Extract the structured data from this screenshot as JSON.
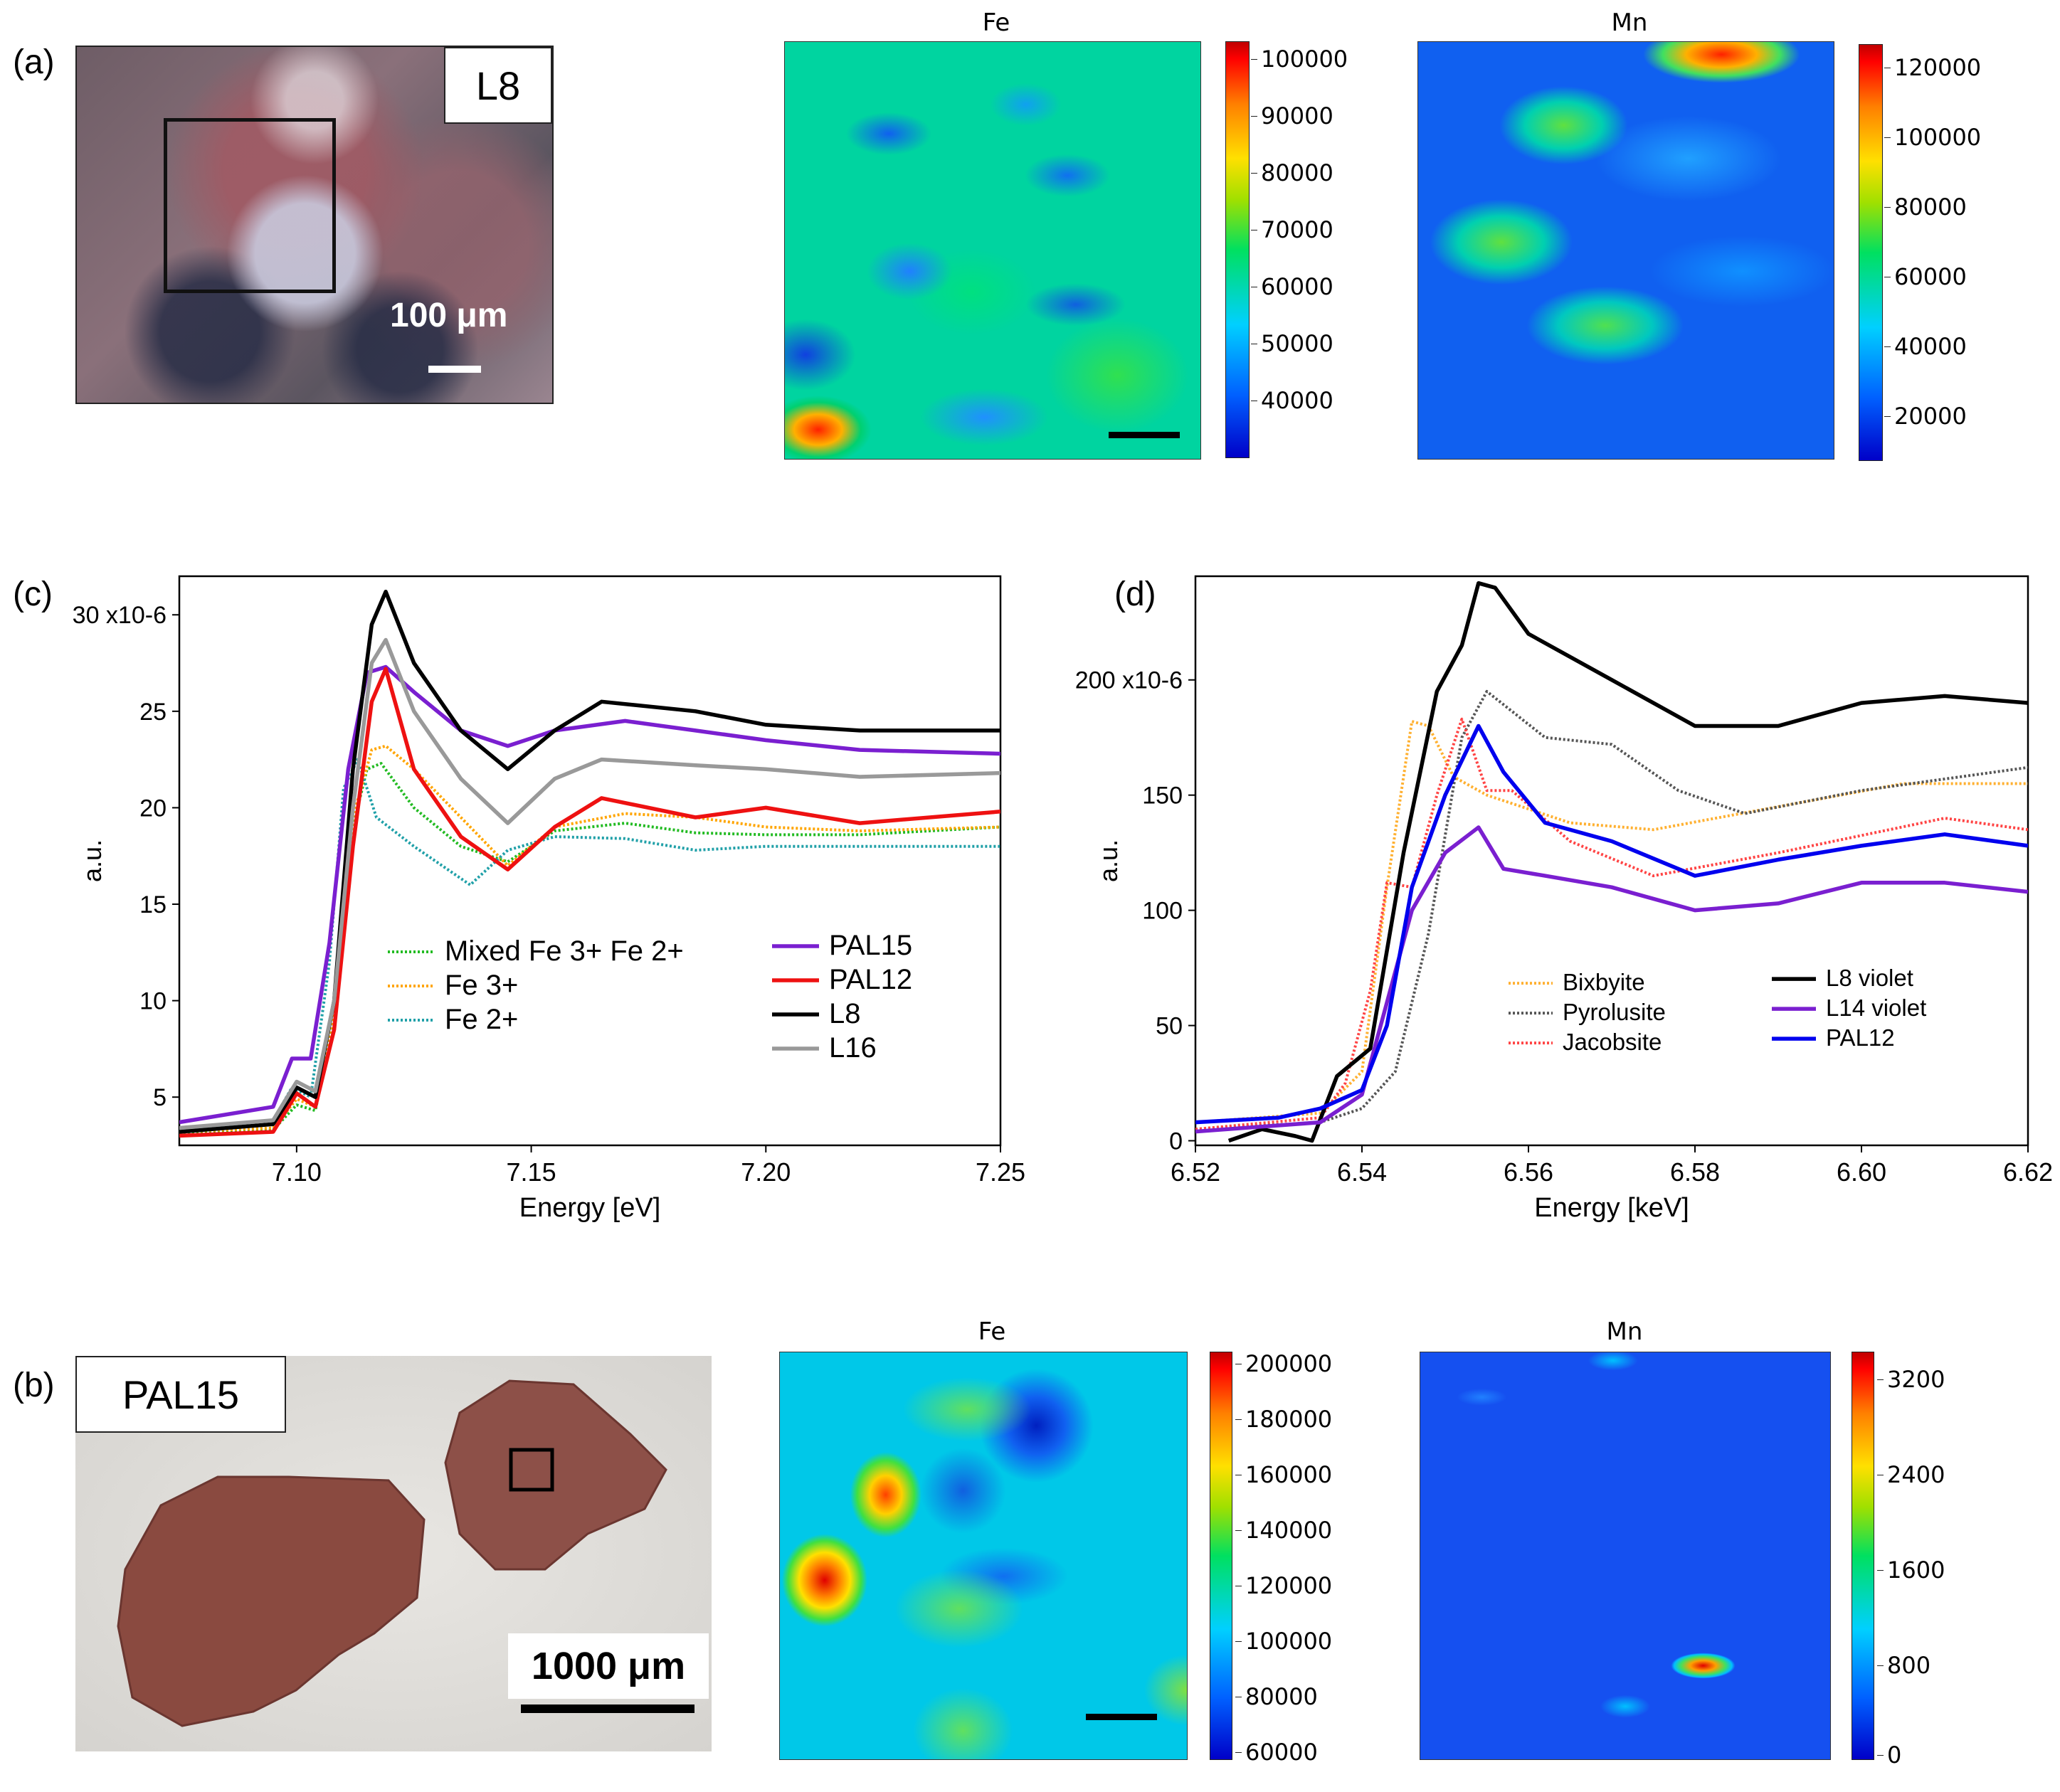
{
  "panels": {
    "a": {
      "label": "(a)",
      "photo_tag": "L8",
      "scale_text": "100 μm",
      "fe_map": {
        "title": "Fe",
        "colorbar_ticks": [
          "100000",
          "90000",
          "80000",
          "70000",
          "60000",
          "50000",
          "40000"
        ]
      },
      "mn_map": {
        "title": "Mn",
        "colorbar_ticks": [
          "120000",
          "100000",
          "80000",
          "60000",
          "40000",
          "20000"
        ]
      }
    },
    "b": {
      "label": "(b)",
      "photo_tag": "PAL15",
      "scale_text": "1000 μm",
      "fe_map": {
        "title": "Fe",
        "colorbar_ticks": [
          "200000",
          "180000",
          "160000",
          "140000",
          "120000",
          "100000",
          "80000",
          "60000"
        ]
      },
      "mn_map": {
        "title": "Mn",
        "colorbar_ticks": [
          "3200",
          "2400",
          "1600",
          "800",
          "0"
        ]
      }
    },
    "c": {
      "label": "(c)"
    },
    "d": {
      "label": "(d)"
    }
  },
  "chart_data": [
    {
      "type": "line",
      "panel": "(c)",
      "xlabel": "Energy [eV]",
      "ylabel": "a.u.",
      "xlim": [
        7.075,
        7.25
      ],
      "ylim": [
        2.5,
        32
      ],
      "x_ticks": [
        "7.10",
        "7.15",
        "7.20",
        "7.25"
      ],
      "x_tick_values": [
        7.1,
        7.15,
        7.2,
        7.25
      ],
      "y_ticks": [
        "5",
        "10",
        "15",
        "20",
        "25",
        "30 x10-6"
      ],
      "y_tick_values": [
        5,
        10,
        15,
        20,
        25,
        30
      ],
      "series": [
        {
          "name": "Mixed Fe 3+ Fe 2+",
          "color": "#22bb22",
          "dashed": true,
          "x": [
            7.075,
            7.095,
            7.1,
            7.104,
            7.108,
            7.112,
            7.115,
            7.118,
            7.125,
            7.135,
            7.145,
            7.155,
            7.17,
            7.185,
            7.2,
            7.22,
            7.25
          ],
          "y": [
            3.1,
            3.3,
            4.6,
            4.3,
            9.0,
            19.0,
            22.0,
            22.3,
            20.0,
            18.0,
            17.2,
            18.8,
            19.2,
            18.7,
            18.6,
            18.6,
            19.0
          ]
        },
        {
          "name": "Fe 3+",
          "color": "#ffa500",
          "dashed": true,
          "x": [
            7.075,
            7.095,
            7.1,
            7.104,
            7.108,
            7.112,
            7.116,
            7.119,
            7.125,
            7.135,
            7.145,
            7.155,
            7.17,
            7.185,
            7.2,
            7.22,
            7.25
          ],
          "y": [
            3.2,
            3.4,
            4.9,
            4.5,
            9.5,
            19.5,
            23.0,
            23.2,
            22.0,
            19.5,
            17.0,
            19.0,
            19.7,
            19.5,
            19.0,
            18.8,
            19.0
          ]
        },
        {
          "name": "Fe 2+",
          "color": "#20a0a8",
          "dashed": true,
          "x": [
            7.075,
            7.095,
            7.099,
            7.103,
            7.107,
            7.11,
            7.113,
            7.117,
            7.125,
            7.137,
            7.145,
            7.155,
            7.17,
            7.185,
            7.2,
            7.22,
            7.25
          ],
          "y": [
            3.3,
            3.8,
            5.5,
            5.0,
            12.0,
            21.0,
            22.5,
            19.5,
            18.0,
            16.0,
            17.8,
            18.5,
            18.4,
            17.8,
            18.0,
            18.0,
            18.0
          ]
        },
        {
          "name": "PAL15",
          "color": "#7a1fd0",
          "dashed": false,
          "x": [
            7.075,
            7.095,
            7.099,
            7.103,
            7.107,
            7.111,
            7.115,
            7.119,
            7.125,
            7.135,
            7.145,
            7.155,
            7.17,
            7.185,
            7.2,
            7.22,
            7.25
          ],
          "y": [
            3.7,
            4.5,
            7.0,
            7.0,
            13.0,
            22.0,
            27.0,
            27.3,
            26.0,
            24.0,
            23.2,
            24.0,
            24.5,
            24.0,
            23.5,
            23.0,
            22.8
          ]
        },
        {
          "name": "PAL12",
          "color": "#ee1111",
          "dashed": false,
          "x": [
            7.075,
            7.095,
            7.1,
            7.104,
            7.108,
            7.112,
            7.116,
            7.119,
            7.125,
            7.135,
            7.145,
            7.155,
            7.165,
            7.185,
            7.2,
            7.22,
            7.25
          ],
          "y": [
            3.0,
            3.2,
            5.2,
            4.5,
            8.5,
            18.0,
            25.5,
            27.2,
            22.0,
            18.5,
            16.8,
            19.0,
            20.5,
            19.5,
            20.0,
            19.2,
            19.8
          ]
        },
        {
          "name": "L8",
          "color": "#000000",
          "dashed": false,
          "x": [
            7.075,
            7.095,
            7.1,
            7.104,
            7.108,
            7.112,
            7.116,
            7.119,
            7.125,
            7.135,
            7.145,
            7.155,
            7.165,
            7.185,
            7.2,
            7.22,
            7.25
          ],
          "y": [
            3.2,
            3.6,
            5.5,
            5.0,
            10.0,
            22.0,
            29.5,
            31.2,
            27.5,
            24.0,
            22.0,
            24.0,
            25.5,
            25.0,
            24.3,
            24.0,
            24.0
          ]
        },
        {
          "name": "L16",
          "color": "#999999",
          "dashed": false,
          "x": [
            7.075,
            7.095,
            7.1,
            7.104,
            7.108,
            7.112,
            7.116,
            7.119,
            7.125,
            7.135,
            7.145,
            7.155,
            7.165,
            7.185,
            7.2,
            7.22,
            7.25
          ],
          "y": [
            3.4,
            3.8,
            5.8,
            5.3,
            10.0,
            20.0,
            27.5,
            28.7,
            25.0,
            21.5,
            19.2,
            21.5,
            22.5,
            22.2,
            22.0,
            21.6,
            21.8
          ]
        }
      ],
      "legend": {
        "placement": "lower-center",
        "left_entries": [
          "Mixed Fe 3+ Fe 2+",
          "Fe 3+",
          "Fe 2+"
        ],
        "right_entries": [
          "PAL15",
          "PAL12",
          "L8",
          "L16"
        ]
      }
    },
    {
      "type": "line",
      "panel": "(d)",
      "xlabel": "Energy [keV]",
      "ylabel": "a.u.",
      "xlim": [
        6.52,
        6.62
      ],
      "ylim": [
        -2,
        245
      ],
      "x_ticks": [
        "6.52",
        "6.54",
        "6.56",
        "6.58",
        "6.60",
        "6.62"
      ],
      "x_tick_values": [
        6.52,
        6.54,
        6.56,
        6.58,
        6.6,
        6.62
      ],
      "y_ticks": [
        "0",
        "50",
        "100",
        "150",
        "200 x10-6"
      ],
      "y_tick_values": [
        0,
        50,
        100,
        150,
        200
      ],
      "series": [
        {
          "name": "Bixbyite",
          "color": "#ffb030",
          "dashed": true,
          "x": [
            6.52,
            6.535,
            6.54,
            6.543,
            6.546,
            6.548,
            6.551,
            6.555,
            6.565,
            6.575,
            6.59,
            6.605,
            6.62
          ],
          "y": [
            8,
            12,
            30,
            110,
            182,
            180,
            158,
            150,
            138,
            135,
            145,
            155,
            155
          ]
        },
        {
          "name": "Pyrolusite",
          "color": "#555555",
          "dashed": true,
          "x": [
            6.52,
            6.535,
            6.54,
            6.544,
            6.548,
            6.552,
            6.555,
            6.562,
            6.57,
            6.578,
            6.586,
            6.6,
            6.62
          ],
          "y": [
            5,
            8,
            14,
            30,
            90,
            175,
            195,
            175,
            172,
            152,
            142,
            152,
            162
          ]
        },
        {
          "name": "Jacobsite",
          "color": "#ff4444",
          "dashed": true,
          "x": [
            6.52,
            6.535,
            6.538,
            6.541,
            6.543,
            6.546,
            6.549,
            6.552,
            6.555,
            6.558,
            6.565,
            6.575,
            6.59,
            6.61,
            6.62
          ],
          "y": [
            5,
            10,
            25,
            65,
            112,
            110,
            150,
            183,
            152,
            152,
            130,
            115,
            125,
            140,
            135
          ]
        },
        {
          "name": "L8 violet",
          "color": "#000000",
          "dashed": false,
          "x": [
            6.524,
            6.528,
            6.532,
            6.534,
            6.537,
            6.541,
            6.545,
            6.549,
            6.552,
            6.554,
            6.556,
            6.56,
            6.57,
            6.58,
            6.59,
            6.6,
            6.61,
            6.62
          ],
          "y": [
            0,
            5,
            2,
            0,
            28,
            40,
            125,
            195,
            215,
            242,
            240,
            220,
            200,
            180,
            180,
            190,
            193,
            190
          ]
        },
        {
          "name": "L14 violet",
          "color": "#7a1fd0",
          "dashed": false,
          "x": [
            6.52,
            6.535,
            6.54,
            6.543,
            6.546,
            6.55,
            6.554,
            6.557,
            6.562,
            6.57,
            6.58,
            6.59,
            6.6,
            6.61,
            6.62
          ],
          "y": [
            4,
            8,
            20,
            60,
            100,
            125,
            136,
            118,
            115,
            110,
            100,
            103,
            112,
            112,
            108
          ]
        },
        {
          "name": "PAL12",
          "color": "#0000ee",
          "dashed": false,
          "x": [
            6.52,
            6.53,
            6.535,
            6.54,
            6.543,
            6.546,
            6.55,
            6.554,
            6.557,
            6.562,
            6.57,
            6.58,
            6.59,
            6.6,
            6.61,
            6.62
          ],
          "y": [
            8,
            10,
            14,
            22,
            50,
            110,
            150,
            180,
            160,
            138,
            130,
            115,
            122,
            128,
            133,
            128
          ]
        }
      ],
      "legend": {
        "placement": "lower-right",
        "left_entries": [
          "Bixbyite",
          "Pyrolusite",
          "Jacobsite"
        ],
        "right_entries": [
          "L8 violet",
          "L14 violet",
          "PAL12"
        ]
      }
    }
  ]
}
